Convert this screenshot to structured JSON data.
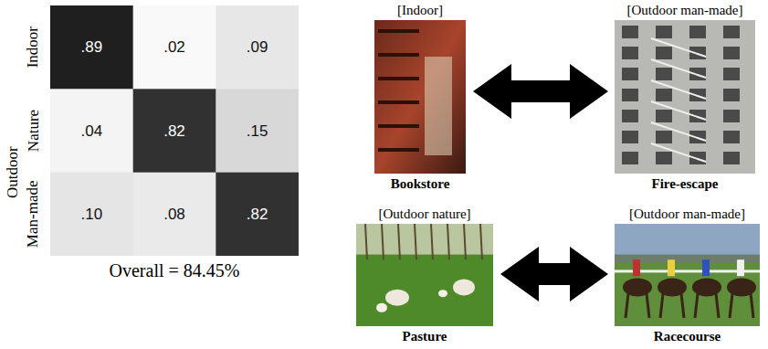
{
  "chart_data": {
    "type": "heatmap",
    "row_labels": [
      "Indoor",
      "Nature",
      "Man-made"
    ],
    "row_group": "Outdoor",
    "cells": [
      [
        0.89,
        0.02,
        0.09
      ],
      [
        0.04,
        0.82,
        0.15
      ],
      [
        0.1,
        0.08,
        0.82
      ]
    ],
    "cell_labels": [
      [
        ".89",
        ".02",
        ".09"
      ],
      [
        ".04",
        ".82",
        ".15"
      ],
      [
        ".10",
        ".08",
        ".82"
      ]
    ],
    "data_labels": true,
    "tick_labels": "y",
    "caption": "Overall = 84.45%"
  },
  "examples": [
    [
      {
        "label": "[Indoor]",
        "name": "Bookstore"
      },
      {
        "label": "[Outdoor man-made]",
        "name": "Fire-escape"
      }
    ],
    [
      {
        "label": "[Outdoor nature]",
        "name": "Pasture"
      },
      {
        "label": "[Outdoor man-made]",
        "name": "Racecourse"
      }
    ]
  ]
}
